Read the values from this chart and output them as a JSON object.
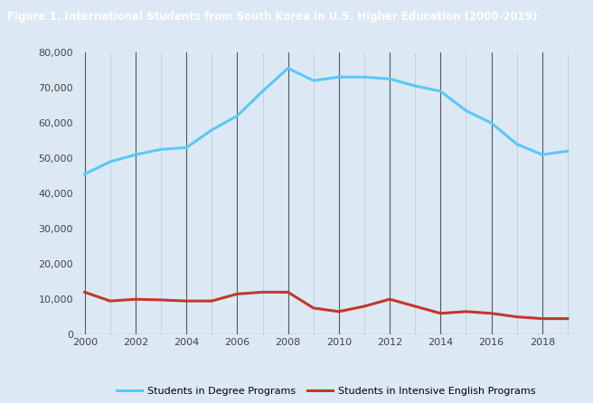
{
  "title": "Figure 1. International Students from South Korea in U.S. Higher Education (2000-2019)",
  "title_bg": "#1c2d6b",
  "title_color": "#ffffff",
  "bg_color": "#dce9f5",
  "plot_bg": "#dce9f5",
  "years": [
    2000,
    2001,
    2002,
    2003,
    2004,
    2005,
    2006,
    2007,
    2008,
    2009,
    2010,
    2011,
    2012,
    2013,
    2014,
    2015,
    2016,
    2017,
    2018,
    2019
  ],
  "degree_students": [
    45500,
    49000,
    51000,
    52500,
    53000,
    58000,
    62000,
    69000,
    75500,
    72000,
    73000,
    73000,
    72500,
    70500,
    69000,
    63500,
    60000,
    54000,
    51000,
    52000
  ],
  "english_students": [
    12000,
    9500,
    10000,
    9800,
    9500,
    9500,
    11500,
    12000,
    12000,
    7500,
    6500,
    8000,
    10000,
    8000,
    6000,
    6500,
    6000,
    5000,
    4500,
    4500
  ],
  "degree_color": "#5bc8f5",
  "english_color": "#c0392b",
  "even_grid_color": "#333333",
  "odd_grid_color": "#aaaaaa",
  "ylim": [
    0,
    80000
  ],
  "yticks": [
    0,
    10000,
    20000,
    30000,
    40000,
    50000,
    60000,
    70000,
    80000
  ],
  "xticks": [
    2000,
    2002,
    2004,
    2006,
    2008,
    2010,
    2012,
    2014,
    2016,
    2018
  ],
  "legend_degree": "Students in Degree Programs",
  "legend_english": "Students in Intensive English Programs",
  "title_fontsize": 8.5,
  "tick_fontsize": 8.0
}
